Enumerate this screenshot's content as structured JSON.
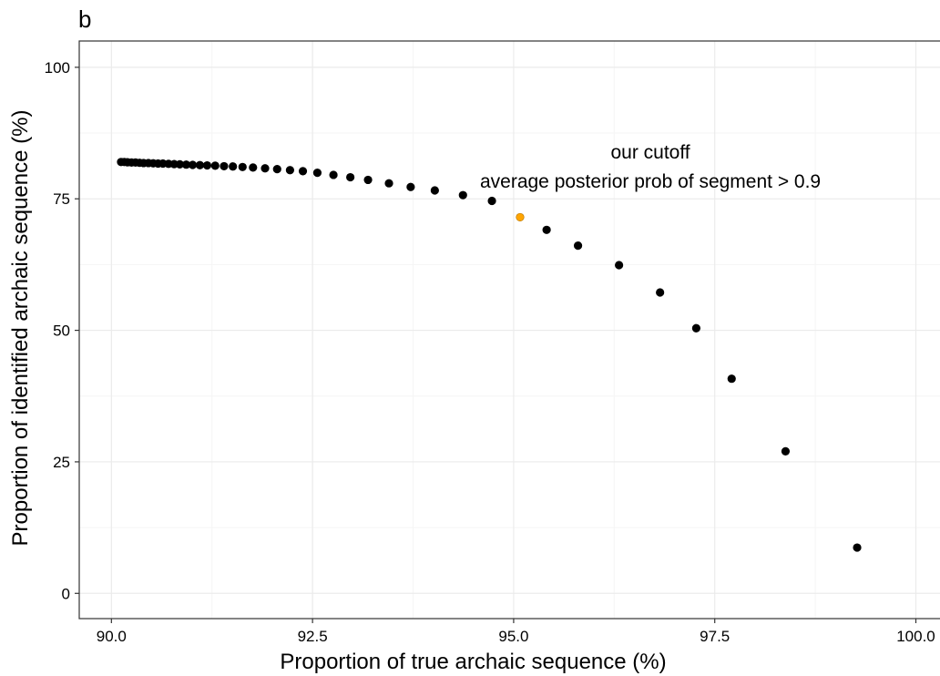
{
  "panel_label": "b",
  "colors": {
    "point": "#000000",
    "highlight": "#ffa500",
    "grid_major": "#ebebeb",
    "grid_minor": "#f5f5f5",
    "axis": "#333333"
  },
  "chart_data": {
    "type": "scatter",
    "title": "",
    "xlabel": "Proportion of true archaic sequence (%)",
    "ylabel": "Proportion of identified archaic sequence (%)",
    "xlim": [
      89.6,
      100.3
    ],
    "ylim": [
      -4.8,
      105
    ],
    "xticks": [
      90.0,
      92.5,
      95.0,
      97.5,
      100.0
    ],
    "xtick_labels": [
      "90.0",
      "92.5",
      "95.0",
      "97.5",
      "100.0"
    ],
    "yticks": [
      0,
      25,
      50,
      75,
      100
    ],
    "ytick_labels": [
      "0",
      "25",
      "50",
      "75",
      "100"
    ],
    "grid": true,
    "points": [
      {
        "x": 90.12,
        "y": 82.0
      },
      {
        "x": 90.16,
        "y": 82.0
      },
      {
        "x": 90.2,
        "y": 81.95
      },
      {
        "x": 90.25,
        "y": 81.9
      },
      {
        "x": 90.3,
        "y": 81.9
      },
      {
        "x": 90.35,
        "y": 81.85
      },
      {
        "x": 90.4,
        "y": 81.8
      },
      {
        "x": 90.46,
        "y": 81.8
      },
      {
        "x": 90.52,
        "y": 81.75
      },
      {
        "x": 90.58,
        "y": 81.7
      },
      {
        "x": 90.64,
        "y": 81.7
      },
      {
        "x": 90.71,
        "y": 81.65
      },
      {
        "x": 90.78,
        "y": 81.6
      },
      {
        "x": 90.85,
        "y": 81.55
      },
      {
        "x": 90.93,
        "y": 81.5
      },
      {
        "x": 91.01,
        "y": 81.45
      },
      {
        "x": 91.1,
        "y": 81.4
      },
      {
        "x": 91.19,
        "y": 81.35
      },
      {
        "x": 91.29,
        "y": 81.3
      },
      {
        "x": 91.4,
        "y": 81.2
      },
      {
        "x": 91.51,
        "y": 81.15
      },
      {
        "x": 91.63,
        "y": 81.05
      },
      {
        "x": 91.76,
        "y": 80.95
      },
      {
        "x": 91.91,
        "y": 80.8
      },
      {
        "x": 92.06,
        "y": 80.65
      },
      {
        "x": 92.22,
        "y": 80.45
      },
      {
        "x": 92.38,
        "y": 80.25
      },
      {
        "x": 92.56,
        "y": 79.95
      },
      {
        "x": 92.76,
        "y": 79.55
      },
      {
        "x": 92.97,
        "y": 79.1
      },
      {
        "x": 93.19,
        "y": 78.6
      },
      {
        "x": 93.45,
        "y": 77.95
      },
      {
        "x": 93.72,
        "y": 77.25
      },
      {
        "x": 94.02,
        "y": 76.6
      },
      {
        "x": 94.37,
        "y": 75.7
      },
      {
        "x": 94.73,
        "y": 74.6
      },
      {
        "x": 95.08,
        "y": 71.5,
        "highlight": true
      },
      {
        "x": 95.41,
        "y": 69.1
      },
      {
        "x": 95.8,
        "y": 66.1
      },
      {
        "x": 96.31,
        "y": 62.4
      },
      {
        "x": 96.82,
        "y": 57.2
      },
      {
        "x": 97.27,
        "y": 50.4
      },
      {
        "x": 97.71,
        "y": 40.8
      },
      {
        "x": 98.38,
        "y": 27.0
      },
      {
        "x": 99.27,
        "y": 8.7
      }
    ],
    "annotations": [
      {
        "text": "our cutoff",
        "x": 96.7,
        "y": 82.7
      },
      {
        "text": "average posterior prob of segment > 0.9",
        "x": 96.7,
        "y": 77.1
      }
    ]
  }
}
